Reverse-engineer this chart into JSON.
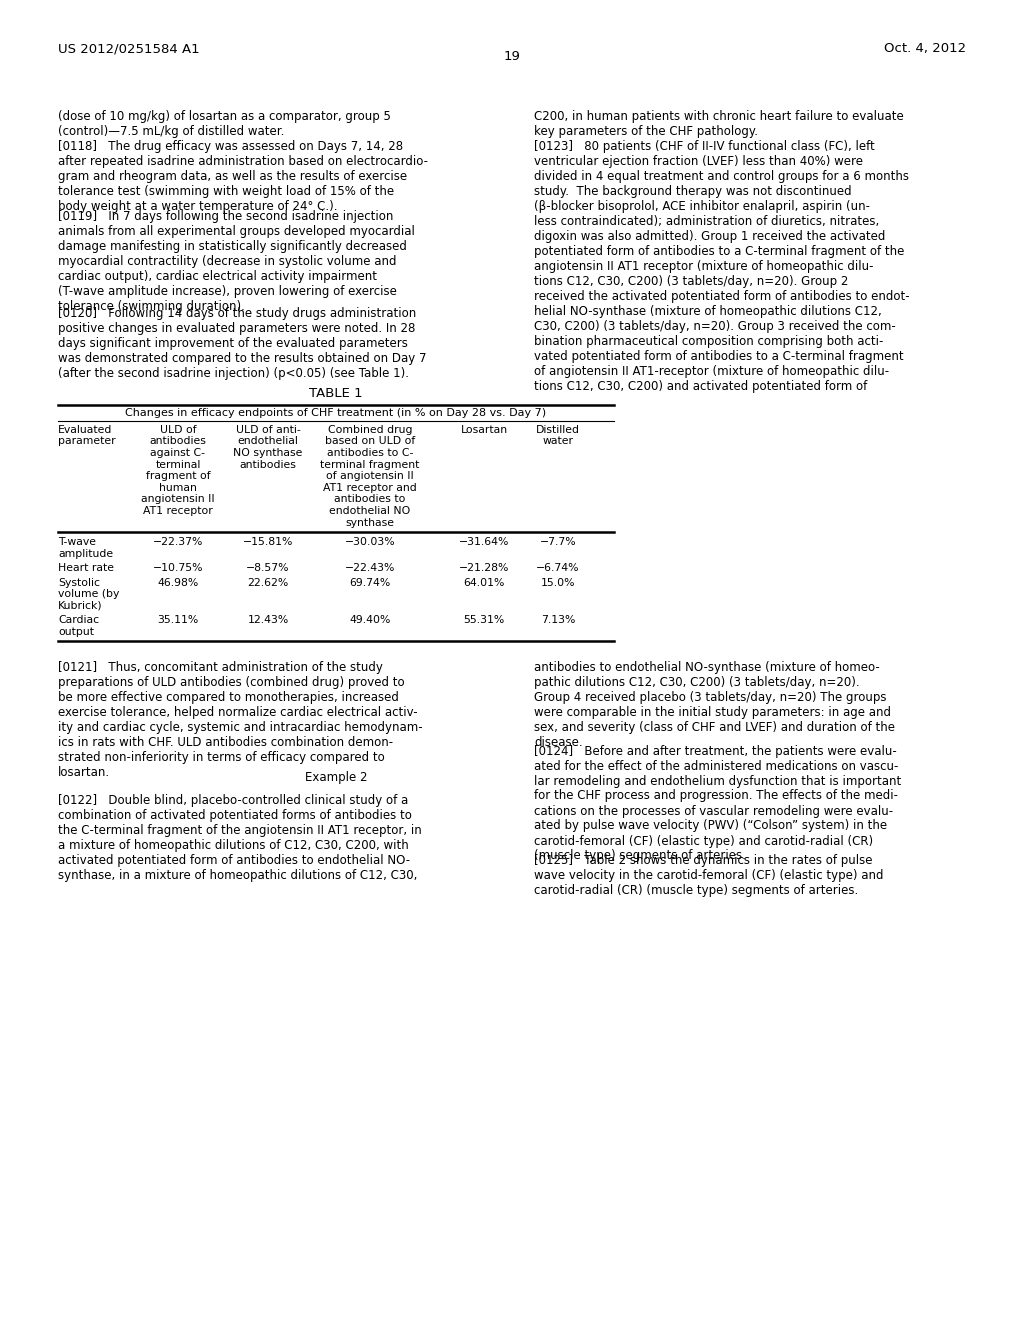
{
  "page_number": "19",
  "patent_number": "US 2012/0251584 A1",
  "patent_date": "Oct. 4, 2012",
  "background_color": "#ffffff",
  "text_color": "#000000",
  "left_paragraphs": [
    "(dose of 10 mg/kg) of losartan as a comparator, group 5\n(control)—7.5 mL/kg of distilled water.",
    "[0118]   The drug efficacy was assessed on Days 7, 14, 28\nafter repeated isadrine administration based on electrocardio-\ngram and rheogram data, as well as the results of exercise\ntolerance test (swimming with weight load of 15% of the\nbody weight at a water temperature of 24° C.).",
    "[0119]   In 7 days following the second isadrine injection\nanimals from all experimental groups developed myocardial\ndamage manifesting in statistically significantly decreased\nmyocardial contractility (decrease in systolic volume and\ncardiac output), cardiac electrical activity impairment\n(T-wave amplitude increase), proven lowering of exercise\ntolerance (swimming duration).",
    "[0120]   Following 14 days of the study drugs administration\npositive changes in evaluated parameters were noted. In 28\ndays significant improvement of the evaluated parameters\nwas demonstrated compared to the results obtained on Day 7\n(after the second isadrine injection) (p<0.05) (see Table 1)."
  ],
  "right_paragraphs_top": [
    "C200, in human patients with chronic heart failure to evaluate\nkey parameters of the CHF pathology.",
    "[0123]   80 patients (CHF of II-IV functional class (FC), left\nventricular ejection fraction (LVEF) less than 40%) were\ndivided in 4 equal treatment and control groups for a 6 months\nstudy.  The background therapy was not discontinued\n(β-blocker bisoprolol, ACE inhibitor enalapril, aspirin (un-\nless contraindicated); administration of diuretics, nitrates,\ndigoxin was also admitted). Group 1 received the activated\npotentiated form of antibodies to a C-terminal fragment of the\nangiotensin II AT1 receptor (mixture of homeopathic dilu-\ntions C12, C30, C200) (3 tablets/day, n=20). Group 2\nreceived the activated potentiated form of antibodies to endot-\nhelial NO-synthase (mixture of homeopathic dilutions C12,\nC30, C200) (3 tablets/day, n=20). Group 3 received the com-\nbination pharmaceutical composition comprising both acti-\nvated potentiated form of antibodies to a C-terminal fragment\nof angiotensin II AT1-receptor (mixture of homeopathic dilu-\ntions C12, C30, C200) and activated potentiated form of"
  ],
  "table_title": "TABLE 1",
  "table_subtitle": "Changes in efficacy endpoints of CHF treatment (in % on Day 28 vs. Day 7)",
  "col_headers": [
    "Evaluated\nparameter",
    "ULD of\nantibodies\nagainst C-\nterminal\nfragment of\nhuman\nangiotensin II\nAT1 receptor",
    "ULD of anti-\nendothelial\nNO synthase\nantibodies",
    "Combined drug\nbased on ULD of\nantibodies to C-\nterminal fragment\nof angiotensin II\nAT1 receptor and\nantibodies to\nendothelial NO\nsynthase",
    "Losartan",
    "Distilled\nwater"
  ],
  "table_rows": [
    [
      "T-wave\namplitude",
      "−22.37%",
      "−15.81%",
      "−30.03%",
      "−31.64%",
      "−7.7%"
    ],
    [
      "Heart rate",
      "−10.75%",
      "−8.57%",
      "−22.43%",
      "−21.28%",
      "−6.74%"
    ],
    [
      "Systolic\nvolume (by\nKubrick)",
      "46.98%",
      "22.62%",
      "69.74%",
      "64.01%",
      "15.0%"
    ],
    [
      "Cardiac\noutput",
      "35.11%",
      "12.43%",
      "49.40%",
      "55.31%",
      "7.13%"
    ]
  ],
  "left_paragraphs_bottom": [
    "[0121]   Thus, concomitant administration of the study\npreparations of ULD antibodies (combined drug) proved to\nbe more effective compared to monotherapies, increased\nexercise tolerance, helped normalize cardiac electrical activ-\nity and cardiac cycle, systemic and intracardiac hemodynam-\nics in rats with CHF. ULD antibodies combination demon-\nstrated non-inferiority in terms of efficacy compared to\nlosartan.",
    "Example 2",
    "[0122]   Double blind, placebo-controlled clinical study of a\ncombination of activated potentiated forms of antibodies to\nthe C-terminal fragment of the angiotensin II AT1 receptor, in\na mixture of homeopathic dilutions of C12, C30, C200, with\nactivated potentiated form of antibodies to endothelial NO-\nsynthase, in a mixture of homeopathic dilutions of C12, C30,"
  ],
  "right_paragraphs_bottom": [
    "antibodies to endothelial NO-synthase (mixture of homeo-\npathic dilutions C12, C30, C200) (3 tablets/day, n=20).\nGroup 4 received placebo (3 tablets/day, n=20) The groups\nwere comparable in the initial study parameters: in age and\nsex, and severity (class of CHF and LVEF) and duration of the\ndisease.",
    "[0124]   Before and after treatment, the patients were evalu-\nated for the effect of the administered medications on vascu-\nlar remodeling and endothelium dysfunction that is important\nfor the CHF process and progression. The effects of the medi-\ncations on the processes of vascular remodeling were evalu-\nated by pulse wave velocity (PWV) (“Colson” system) in the\ncarotid-femoral (CF) (elastic type) and carotid-radial (CR)\n(muscle type) segments of arteries.",
    "[0125]   Table 2 shows the dynamics in the rates of pulse\nwave velocity in the carotid-femoral (CF) (elastic type) and\ncarotid-radial (CR) (muscle type) segments of arteries."
  ]
}
